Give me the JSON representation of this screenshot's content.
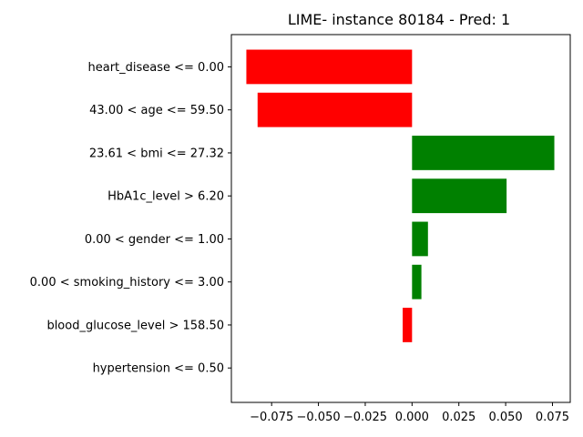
{
  "chart_data": {
    "type": "bar",
    "orientation": "horizontal",
    "title": "LIME- instance 80184 - Pred: 1",
    "xlabel": "",
    "ylabel": "",
    "xlim": [
      -0.0965,
      0.0845
    ],
    "grid": false,
    "x_ticks": [
      -0.075,
      -0.05,
      -0.025,
      0.0,
      0.025,
      0.05,
      0.075
    ],
    "x_tick_labels": [
      "−0.075",
      "−0.050",
      "−0.025",
      "0.000",
      "0.025",
      "0.050",
      "0.075"
    ],
    "categories": [
      "heart_disease <= 0.00",
      "43.00 < age <= 59.50",
      "23.61 < bmi <= 27.32",
      "HbA1c_level > 6.20",
      "0.00 < gender <= 1.00",
      "0.00 < smoking_history <= 3.00",
      "blood_glucose_level > 158.50",
      "hypertension <= 0.50"
    ],
    "values": [
      -0.0885,
      -0.0825,
      0.076,
      0.0505,
      0.0085,
      0.005,
      -0.005,
      0.0
    ],
    "colors": {
      "positive": "#008000",
      "negative": "#ff0000"
    }
  }
}
